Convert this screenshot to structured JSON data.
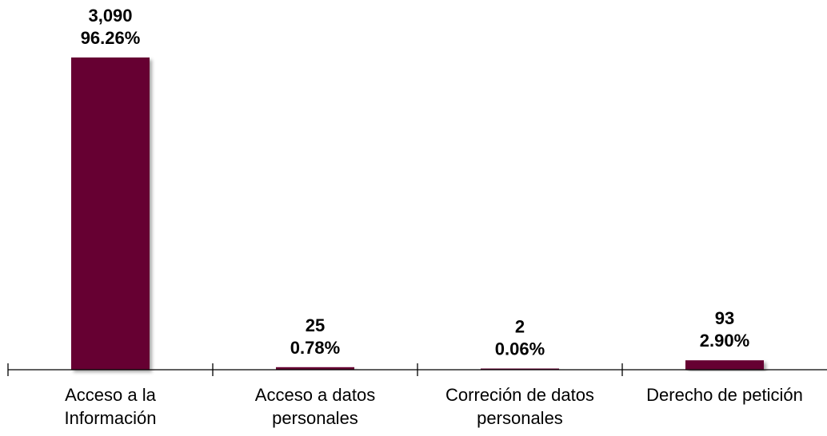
{
  "chart_data": {
    "type": "bar",
    "categories": [
      [
        "Acceso a la",
        "Información"
      ],
      [
        "Acceso a datos",
        "personales"
      ],
      [
        "Correción de datos",
        "personales"
      ],
      [
        "Derecho de petición"
      ]
    ],
    "values": [
      3090,
      25,
      2,
      93
    ],
    "value_labels": [
      "3,090",
      "25",
      "2",
      "93"
    ],
    "percent_labels": [
      "96.26%",
      "0.78%",
      "0.06%",
      "2.90%"
    ],
    "title": "",
    "xlabel": "",
    "ylabel": "",
    "ylim": [
      0,
      3090
    ],
    "grid": false,
    "legend": "none",
    "bar_color": "#660033",
    "axis_color": "#000000"
  }
}
